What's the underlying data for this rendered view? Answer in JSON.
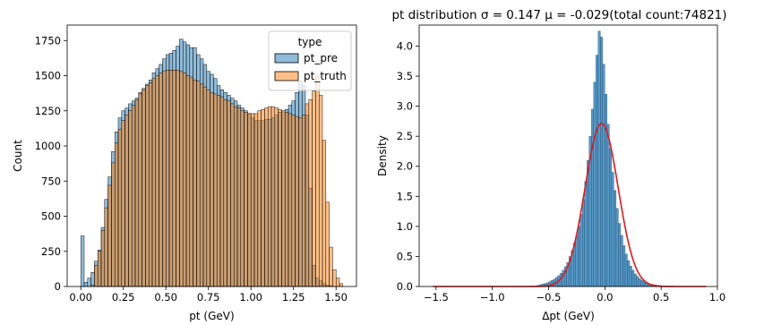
{
  "chart_data": [
    {
      "type": "histogram",
      "xlabel": "pt (GeV)",
      "ylabel": "Count",
      "xlim": [
        -0.08,
        1.62
      ],
      "ylim": [
        0,
        1860
      ],
      "xticks": [
        0.0,
        0.25,
        0.5,
        0.75,
        1.0,
        1.25,
        1.5
      ],
      "xtick_labels": [
        "0.00",
        "0.25",
        "0.50",
        "0.75",
        "1.00",
        "1.25",
        "1.50"
      ],
      "yticks": [
        0,
        250,
        500,
        750,
        1000,
        1250,
        1500,
        1750
      ],
      "ytick_labels": [
        "0",
        "250",
        "500",
        "750",
        "1000",
        "1250",
        "1500",
        "1750"
      ],
      "bin_width": 0.02,
      "legend": {
        "title": "type",
        "position": "upper right"
      },
      "series": [
        {
          "name": "pt_pre",
          "color": "#1f77b4",
          "bins_start": [
            0.0,
            0.02,
            0.04,
            0.06,
            0.08,
            0.1,
            0.12,
            0.14,
            0.16,
            0.18,
            0.2,
            0.22,
            0.24,
            0.26,
            0.28,
            0.3,
            0.32,
            0.34,
            0.36,
            0.38,
            0.4,
            0.42,
            0.44,
            0.46,
            0.48,
            0.5,
            0.52,
            0.54,
            0.56,
            0.58,
            0.6,
            0.62,
            0.64,
            0.66,
            0.68,
            0.7,
            0.72,
            0.74,
            0.76,
            0.78,
            0.8,
            0.82,
            0.84,
            0.86,
            0.88,
            0.9,
            0.92,
            0.94,
            0.96,
            0.98,
            1.0,
            1.02,
            1.04,
            1.06,
            1.08,
            1.1,
            1.12,
            1.14,
            1.16,
            1.18,
            1.2,
            1.22,
            1.24,
            1.26,
            1.28,
            1.3,
            1.32,
            1.34,
            1.36,
            1.38,
            1.4,
            1.42,
            1.44,
            1.46,
            1.48
          ],
          "values": [
            360,
            30,
            60,
            100,
            180,
            260,
            420,
            620,
            780,
            960,
            1100,
            1200,
            1250,
            1270,
            1300,
            1320,
            1340,
            1380,
            1410,
            1440,
            1470,
            1520,
            1550,
            1580,
            1620,
            1650,
            1660,
            1680,
            1710,
            1760,
            1740,
            1720,
            1700,
            1700,
            1650,
            1620,
            1580,
            1530,
            1510,
            1480,
            1430,
            1400,
            1380,
            1360,
            1340,
            1320,
            1290,
            1270,
            1250,
            1230,
            1200,
            1180,
            1180,
            1180,
            1190,
            1190,
            1200,
            1220,
            1240,
            1250,
            1260,
            1290,
            1320,
            1380,
            1460,
            1430,
            1220,
            700,
            150,
            60,
            40,
            20,
            10,
            5,
            0
          ]
        },
        {
          "name": "pt_truth",
          "color": "#ff7f0e",
          "bins_start": [
            0.06,
            0.08,
            0.1,
            0.12,
            0.14,
            0.16,
            0.18,
            0.2,
            0.22,
            0.24,
            0.26,
            0.28,
            0.3,
            0.32,
            0.34,
            0.36,
            0.38,
            0.4,
            0.42,
            0.44,
            0.46,
            0.48,
            0.5,
            0.52,
            0.54,
            0.56,
            0.58,
            0.6,
            0.62,
            0.64,
            0.66,
            0.68,
            0.7,
            0.72,
            0.74,
            0.76,
            0.78,
            0.8,
            0.82,
            0.84,
            0.86,
            0.88,
            0.9,
            0.92,
            0.94,
            0.96,
            0.98,
            1.0,
            1.02,
            1.04,
            1.06,
            1.08,
            1.1,
            1.12,
            1.14,
            1.16,
            1.18,
            1.2,
            1.22,
            1.24,
            1.26,
            1.28,
            1.3,
            1.32,
            1.34,
            1.36,
            1.38,
            1.4,
            1.42,
            1.44,
            1.46,
            1.48,
            1.5,
            1.52
          ],
          "values": [
            10,
            150,
            250,
            400,
            560,
            720,
            880,
            1020,
            1120,
            1180,
            1220,
            1250,
            1290,
            1330,
            1370,
            1400,
            1430,
            1450,
            1480,
            1500,
            1520,
            1530,
            1540,
            1540,
            1540,
            1540,
            1530,
            1520,
            1500,
            1490,
            1470,
            1460,
            1440,
            1420,
            1400,
            1380,
            1370,
            1360,
            1350,
            1330,
            1320,
            1300,
            1280,
            1270,
            1250,
            1240,
            1230,
            1230,
            1230,
            1250,
            1260,
            1270,
            1280,
            1280,
            1270,
            1260,
            1250,
            1240,
            1230,
            1220,
            1210,
            1200,
            1220,
            1300,
            1330,
            1390,
            1500,
            1360,
            1040,
            600,
            280,
            120,
            60,
            20
          ]
        }
      ]
    },
    {
      "type": "histogram",
      "title": "pt distribution σ = 0.147 μ = -0.029(total count:74821)",
      "xlabel": "Δpt (GeV)",
      "ylabel": "Density",
      "xlim": [
        -1.65,
        1.0
      ],
      "ylim": [
        0,
        4.35
      ],
      "xticks": [
        -1.5,
        -1.0,
        -0.5,
        0.0,
        0.5,
        1.0
      ],
      "xtick_labels": [
        "−1.5",
        "−1.0",
        "−0.5",
        "0.0",
        "0.5",
        "1.0"
      ],
      "yticks": [
        0.0,
        0.5,
        1.0,
        1.5,
        2.0,
        2.5,
        3.0,
        3.5,
        4.0
      ],
      "ytick_labels": [
        "0.0",
        "0.5",
        "1.0",
        "1.5",
        "2.0",
        "2.5",
        "3.0",
        "3.5",
        "4.0"
      ],
      "bin_width": 0.02,
      "series": [
        {
          "color": "#1f77b4",
          "bins_start": [
            -0.6,
            -0.58,
            -0.56,
            -0.54,
            -0.52,
            -0.5,
            -0.48,
            -0.46,
            -0.44,
            -0.42,
            -0.4,
            -0.38,
            -0.36,
            -0.34,
            -0.32,
            -0.3,
            -0.28,
            -0.26,
            -0.24,
            -0.22,
            -0.2,
            -0.18,
            -0.16,
            -0.14,
            -0.12,
            -0.1,
            -0.08,
            -0.06,
            -0.04,
            -0.02,
            0.0,
            0.02,
            0.04,
            0.06,
            0.08,
            0.1,
            0.12,
            0.14,
            0.16,
            0.18,
            0.2,
            0.22,
            0.24,
            0.26,
            0.28,
            0.3,
            0.32,
            0.34,
            0.36,
            0.38,
            0.4,
            0.42,
            0.44,
            0.46,
            0.48,
            0.5,
            0.52,
            0.54,
            0.56,
            0.58
          ],
          "values": [
            0.02,
            0.03,
            0.04,
            0.05,
            0.06,
            0.08,
            0.1,
            0.12,
            0.15,
            0.18,
            0.22,
            0.27,
            0.33,
            0.4,
            0.5,
            0.6,
            0.72,
            0.85,
            1.0,
            1.2,
            1.45,
            1.75,
            2.1,
            2.5,
            2.95,
            3.4,
            3.85,
            4.25,
            4.15,
            3.7,
            3.2,
            2.7,
            2.3,
            1.9,
            1.6,
            1.3,
            1.05,
            0.85,
            0.68,
            0.54,
            0.43,
            0.34,
            0.27,
            0.21,
            0.17,
            0.13,
            0.1,
            0.08,
            0.06,
            0.05,
            0.04,
            0.03,
            0.025,
            0.02,
            0.015,
            0.01,
            0.008,
            0.006,
            0.004,
            0.003
          ]
        },
        {
          "type": "line",
          "color": "#e8161b",
          "fit": "normal",
          "mu": -0.029,
          "sigma": 0.147,
          "x_range": [
            -1.53,
            0.9
          ]
        }
      ]
    }
  ]
}
